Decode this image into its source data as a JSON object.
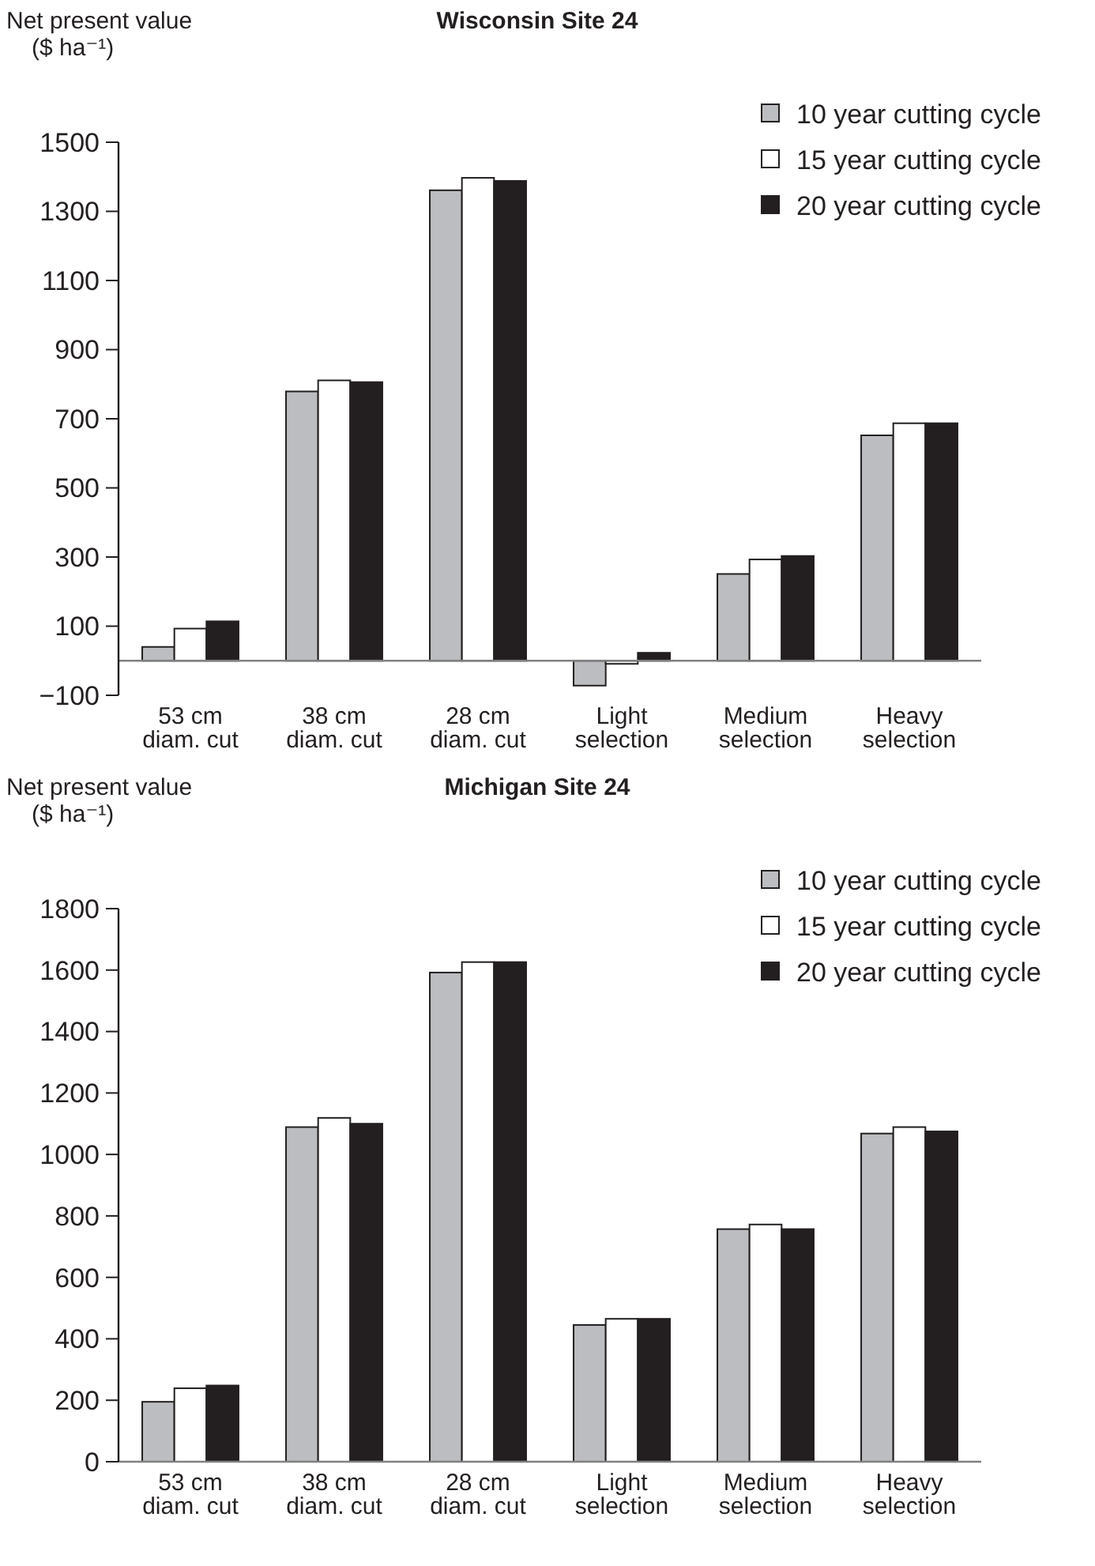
{
  "chart_data": [
    {
      "type": "bar",
      "title": "Wisconsin Site 24",
      "ylabel": "Net present value\n($ ha⁻¹)",
      "categories": [
        "53 cm\ndiam. cut",
        "38 cm\ndiam. cut",
        "28 cm\ndiam. cut",
        "Light\nselection",
        "Medium\nselection",
        "Heavy\nselection"
      ],
      "series": [
        {
          "name": "10 year cutting cycle",
          "color": "#bcbdc0",
          "values": [
            40,
            779,
            1361,
            -72,
            251,
            652
          ]
        },
        {
          "name": "15 year cutting cycle",
          "color": "#ffffff",
          "values": [
            93,
            811,
            1397,
            -9,
            293,
            687
          ]
        },
        {
          "name": "20 year cutting cycle",
          "color": "#231f20",
          "values": [
            114,
            806,
            1388,
            23,
            303,
            687
          ]
        }
      ],
      "ylim": [
        -100,
        1500
      ],
      "yticks": [
        {
          "value": -100,
          "label": "−100"
        },
        100,
        300,
        500,
        700,
        900,
        1100,
        1300,
        1500
      ],
      "grid": false,
      "legend": "top right"
    },
    {
      "type": "bar",
      "title": "Michigan Site 24",
      "ylabel": "Net present value\n($ ha⁻¹)",
      "categories": [
        "53 cm\ndiam. cut",
        "38 cm\ndiam. cut",
        "28 cm\ndiam. cut",
        "Light\nselection",
        "Medium\nselection",
        "Heavy\nselection"
      ],
      "series": [
        {
          "name": "10 year cutting cycle",
          "color": "#bcbdc0",
          "values": [
            195,
            1089,
            1592,
            445,
            757,
            1068
          ]
        },
        {
          "name": "15 year cutting cycle",
          "color": "#ffffff",
          "values": [
            239,
            1119,
            1626,
            465,
            772,
            1089
          ]
        },
        {
          "name": "20 year cutting cycle",
          "color": "#231f20",
          "values": [
            248,
            1100,
            1626,
            465,
            757,
            1075
          ]
        }
      ],
      "ylim": [
        0,
        1800
      ],
      "yticks": [
        0,
        200,
        400,
        600,
        800,
        1000,
        1200,
        1400,
        1600,
        1800
      ],
      "grid": false,
      "legend": "top right"
    }
  ]
}
